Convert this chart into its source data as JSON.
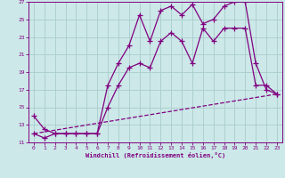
{
  "background_color": "#cce8e8",
  "grid_color": "#aacccc",
  "line_color": "#800080",
  "xlabel": "Windchill (Refroidissement éolien,°C)",
  "xlim": [
    -0.5,
    23.5
  ],
  "ylim": [
    11,
    27
  ],
  "yticks": [
    11,
    13,
    15,
    17,
    19,
    21,
    23,
    25,
    27
  ],
  "xticks": [
    0,
    1,
    2,
    3,
    4,
    5,
    6,
    7,
    8,
    9,
    10,
    11,
    12,
    13,
    14,
    15,
    16,
    17,
    18,
    19,
    20,
    21,
    22,
    23
  ],
  "series": [
    {
      "x": [
        0,
        1,
        2,
        3,
        4,
        5,
        6,
        7,
        8,
        9,
        10,
        11,
        12,
        13,
        14,
        15,
        16,
        17,
        18,
        19,
        20,
        21,
        22,
        23
      ],
      "y": [
        14,
        12.5,
        12,
        12,
        12,
        12,
        12,
        17.5,
        20,
        22,
        25.5,
        22.5,
        26,
        26.5,
        25.5,
        26.7,
        24.5,
        25,
        26.5,
        27,
        27,
        20,
        17,
        16.5
      ],
      "marker": "+",
      "markersize": 4,
      "linewidth": 0.9
    },
    {
      "x": [
        0,
        1,
        2,
        3,
        4,
        5,
        6,
        7,
        8,
        9,
        10,
        11,
        12,
        13,
        14,
        15,
        16,
        17,
        18,
        19,
        20,
        21,
        22,
        23
      ],
      "y": [
        12,
        11.5,
        12,
        12,
        12,
        12,
        12,
        15,
        17.5,
        19.5,
        20,
        19.5,
        22.5,
        23.5,
        22.5,
        20,
        24,
        22.5,
        24,
        24,
        24,
        17.5,
        17.5,
        16.5
      ],
      "marker": "+",
      "markersize": 4,
      "linewidth": 0.9
    },
    {
      "x": [
        0,
        23
      ],
      "y": [
        12,
        16.5
      ],
      "marker": null,
      "markersize": 0,
      "linewidth": 0.9,
      "linestyle": "--"
    }
  ]
}
